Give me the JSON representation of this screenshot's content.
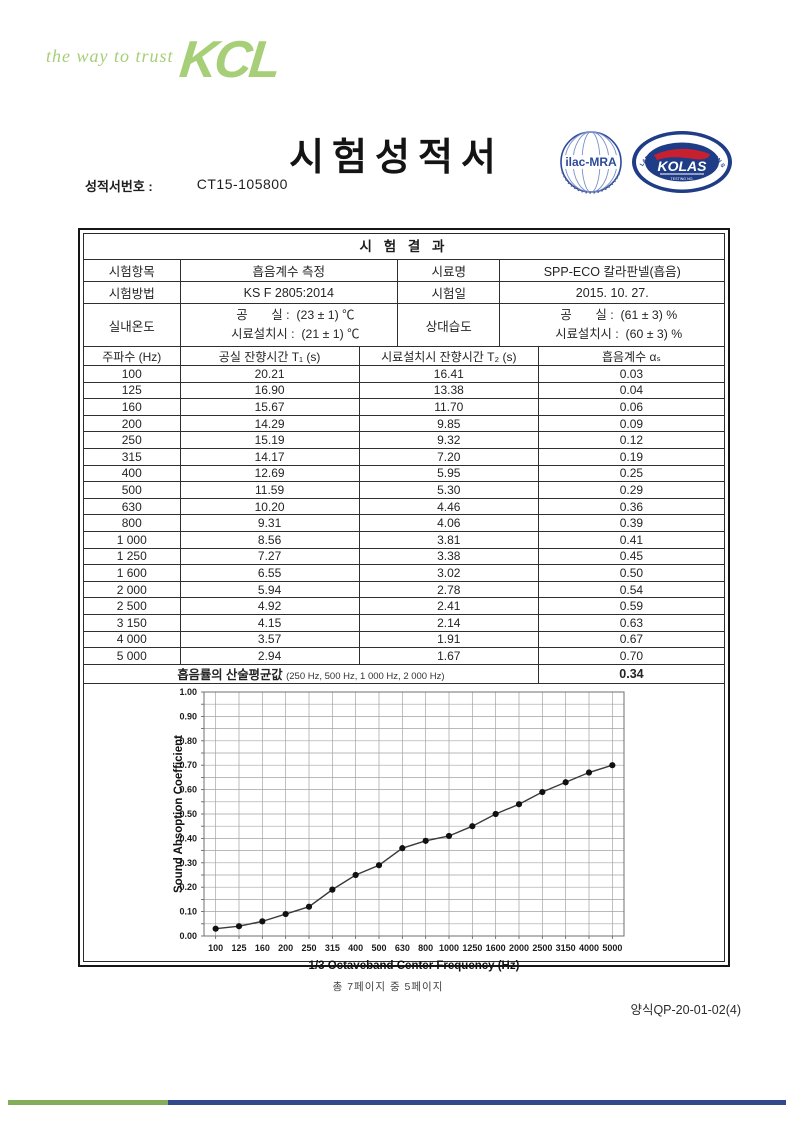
{
  "brand": {
    "tagline": "the way to trust",
    "logo": "KCL"
  },
  "header": {
    "title": "시험성적서",
    "report_no_label": "성적서번호 :",
    "report_no": "CT15-105800"
  },
  "seals": {
    "ilac_text": "ilac-MRA",
    "kolas_text": "KOLAS",
    "kolas_ring": "KOREA LABORATORY ACCREDITATION SCHEME",
    "kolas_sub": "TESTING NO."
  },
  "colors": {
    "brand_green": "#a6cf78",
    "bar_green": "#84ad5b",
    "bar_blue": "#32498c",
    "seal_blue": "#2d4a9a",
    "seal_navy": "#1f3c87",
    "seal_red": "#c8202f"
  },
  "results": {
    "section_title": "시 험 결 과",
    "info_rows": [
      {
        "l1": "시험항목",
        "v1": "흡음계수 측정",
        "l2": "시료명",
        "v2": "SPP-ECO 칼라판넬(흡음)"
      },
      {
        "l1": "시험방법",
        "v1": "KS F 2805:2014",
        "l2": "시험일",
        "v2": "2015. 10. 27."
      }
    ],
    "temp_row": {
      "label": "실내온도",
      "value_l1": "공       실 :  (23 ± 1) ℃",
      "value_l2": "시료설치시 :  (21 ± 1) ℃",
      "label2": "상대습도",
      "value2_l1": "공       실 :  (61 ± 3) %",
      "value2_l2": "시료설치시 :  (60 ± 3) %"
    },
    "freq_headers": [
      "주파수 (Hz)",
      "공실 잔향시간 T₁ (s)",
      "시료설치시 잔향시간 T₂ (s)",
      "흡음계수 αₛ"
    ],
    "freq_rows": [
      [
        "100",
        "20.21",
        "16.41",
        "0.03"
      ],
      [
        "125",
        "16.90",
        "13.38",
        "0.04"
      ],
      [
        "160",
        "15.67",
        "11.70",
        "0.06"
      ],
      [
        "200",
        "14.29",
        "9.85",
        "0.09"
      ],
      [
        "250",
        "15.19",
        "9.32",
        "0.12"
      ],
      [
        "315",
        "14.17",
        "7.20",
        "0.19"
      ],
      [
        "400",
        "12.69",
        "5.95",
        "0.25"
      ],
      [
        "500",
        "11.59",
        "5.30",
        "0.29"
      ],
      [
        "630",
        "10.20",
        "4.46",
        "0.36"
      ],
      [
        "800",
        "9.31",
        "4.06",
        "0.39"
      ],
      [
        "1 000",
        "8.56",
        "3.81",
        "0.41"
      ],
      [
        "1 250",
        "7.27",
        "3.38",
        "0.45"
      ],
      [
        "1 600",
        "6.55",
        "3.02",
        "0.50"
      ],
      [
        "2 000",
        "5.94",
        "2.78",
        "0.54"
      ],
      [
        "2 500",
        "4.92",
        "2.41",
        "0.59"
      ],
      [
        "3 150",
        "4.15",
        "2.14",
        "0.63"
      ],
      [
        "4 000",
        "3.57",
        "1.91",
        "0.67"
      ],
      [
        "5 000",
        "2.94",
        "1.67",
        "0.70"
      ]
    ],
    "summary_label": "흡음률의 산술평균값",
    "summary_note": "(250 Hz, 500 Hz, 1 000 Hz, 2 000 Hz)",
    "summary_value": "0.34"
  },
  "chart_data": {
    "type": "line",
    "title": "",
    "xlabel": "1/3 Octaveband Center Frequency (Hz)",
    "ylabel": "Sound Absoption Coefficient",
    "categories": [
      "100",
      "125",
      "160",
      "200",
      "250",
      "315",
      "400",
      "500",
      "630",
      "800",
      "1000",
      "1250",
      "1600",
      "2000",
      "2500",
      "3150",
      "4000",
      "5000"
    ],
    "values": [
      0.03,
      0.04,
      0.06,
      0.09,
      0.12,
      0.19,
      0.25,
      0.29,
      0.36,
      0.39,
      0.41,
      0.45,
      0.5,
      0.54,
      0.59,
      0.63,
      0.67,
      0.7
    ],
    "ylim": [
      0,
      1.0
    ],
    "ytick_step": 0.1,
    "grid_minor_step": 0.05,
    "grid": true,
    "legend": "none",
    "marker": "circle",
    "line_color": "#3a3a3a",
    "marker_color": "#111111"
  },
  "footer": {
    "page_info": "총 7페이지 중 5페이지",
    "form_no": "양식QP-20-01-02(4)"
  }
}
